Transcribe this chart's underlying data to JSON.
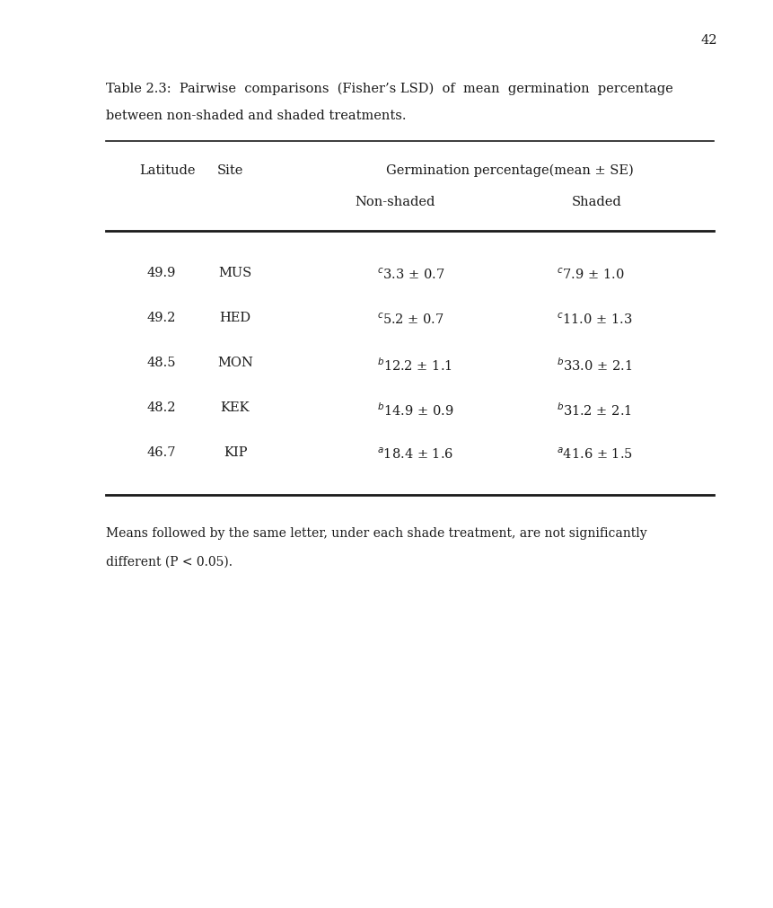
{
  "page_number": "42",
  "title_line1": "Table 2.3:  Pairwise  comparisons  (Fisher’s LSD)  of  mean  germination  percentage",
  "title_line2": "between non-shaded and shaded treatments.",
  "col_header_lat": "Latitude",
  "col_header_site": "Site",
  "col_header_germ": "Germination percentage(mean ± SE)",
  "sub_header_ns": "Non-shaded",
  "sub_header_s": "Shaded",
  "rows": [
    {
      "latitude": "49.9",
      "site": "MUS",
      "ns_super": "c",
      "ns_val": "3.3 ± 0.7",
      "s_super": "c",
      "s_val": "7.9 ± 1.0"
    },
    {
      "latitude": "49.2",
      "site": "HED",
      "ns_super": "c",
      "ns_val": "5.2 ± 0.7",
      "s_super": "c",
      "s_val": "11.0 ± 1.3"
    },
    {
      "latitude": "48.5",
      "site": "MON",
      "ns_super": "b",
      "ns_val": "12.2 ± 1.1",
      "s_super": "b",
      "s_val": "33.0 ± 2.1"
    },
    {
      "latitude": "48.2",
      "site": "KEK",
      "ns_super": "b",
      "ns_val": "14.9 ± 0.9",
      "s_super": "b",
      "s_val": "31.2 ± 2.1"
    },
    {
      "latitude": "46.7",
      "site": "KIP",
      "ns_super": "a",
      "ns_val": "18.4 ± 1.6",
      "s_super": "a",
      "s_val": "41.6 ± 1.5"
    }
  ],
  "footnote_line1": "Means followed by the same letter, under each shade treatment, are not significantly",
  "footnote_line2": "different (P < 0.05).",
  "bg_color": "#ffffff",
  "text_color": "#1a1a1a",
  "font_family": "DejaVu Serif"
}
